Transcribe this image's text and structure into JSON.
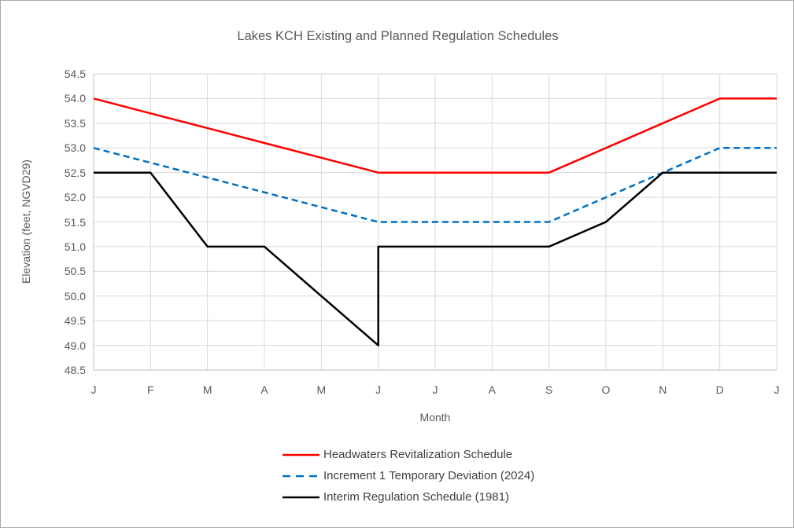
{
  "title": "Lakes KCH Existing and Planned Regulation Schedules",
  "chart_data": {
    "type": "line",
    "title": "Lakes KCH Existing and Planned Regulation Schedules",
    "xlabel": "Month",
    "ylabel": "Elevation (feet, NGVD29)",
    "ylim": [
      48.5,
      54.5
    ],
    "ytick_step": 0.5,
    "yticks": [
      "54.5",
      "54.0",
      "53.5",
      "53.0",
      "52.5",
      "52.0",
      "51.5",
      "51.0",
      "50.5",
      "50.0",
      "49.5",
      "49.0",
      "48.5"
    ],
    "categories": [
      "J",
      "F",
      "M",
      "A",
      "M",
      "J",
      "J",
      "A",
      "S",
      "O",
      "N",
      "D",
      "J"
    ],
    "grid": true,
    "legend_position": "bottom-left",
    "series": [
      {
        "name": "Headwaters Revitalization Schedule",
        "color": "#ff0000",
        "style": "solid",
        "points": [
          [
            0,
            54.0
          ],
          [
            1,
            53.7
          ],
          [
            2,
            53.4
          ],
          [
            3,
            53.1
          ],
          [
            4,
            52.8
          ],
          [
            5,
            52.5
          ],
          [
            6,
            52.5
          ],
          [
            7,
            52.5
          ],
          [
            8,
            52.5
          ],
          [
            9,
            53.0
          ],
          [
            10,
            53.5
          ],
          [
            11,
            54.0
          ],
          [
            12,
            54.0
          ]
        ]
      },
      {
        "name": "Increment 1 Temporary Deviation (2024)",
        "color": "#0070c0",
        "style": "dashed",
        "points": [
          [
            0,
            53.0
          ],
          [
            1,
            52.7
          ],
          [
            2,
            52.4
          ],
          [
            3,
            52.1
          ],
          [
            4,
            51.8
          ],
          [
            5,
            51.5
          ],
          [
            6,
            51.5
          ],
          [
            7,
            51.5
          ],
          [
            8,
            51.5
          ],
          [
            9,
            52.0
          ],
          [
            10,
            52.5
          ],
          [
            11,
            53.0
          ],
          [
            12,
            53.0
          ]
        ]
      },
      {
        "name": "Interim Regulation Schedule (1981)",
        "color": "#000000",
        "style": "solid",
        "points": [
          [
            0,
            52.5
          ],
          [
            1,
            52.5
          ],
          [
            2,
            51.0
          ],
          [
            3,
            51.0
          ],
          [
            4,
            50.0
          ],
          [
            5,
            49.0
          ],
          [
            5,
            51.0
          ],
          [
            6,
            51.0
          ],
          [
            7,
            51.0
          ],
          [
            8,
            51.0
          ],
          [
            9,
            51.5
          ],
          [
            10,
            52.5
          ],
          [
            11,
            52.5
          ],
          [
            12,
            52.5
          ]
        ]
      }
    ]
  },
  "colors": {
    "grid": "#d9d9d9",
    "axis": "#bfbfbf",
    "tick_text": "#595959",
    "title_text": "#595959",
    "legend_text": "#404040",
    "canvas_border": "#ababab",
    "background": "#ffffff"
  }
}
